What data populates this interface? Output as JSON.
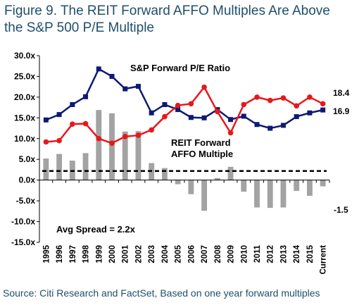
{
  "title": "Figure 9. The REIT Forward AFFO Multiples Are Above the S&P 500 P/E Multiple",
  "source": "Source: Citi Research and FactSet, Based on one year forward multiples",
  "chart_data": {
    "type": "bar+line",
    "categories": [
      "1995",
      "1996",
      "1997",
      "1998",
      "1999",
      "2000",
      "2001",
      "2002",
      "2003",
      "2004",
      "2005",
      "2006",
      "2007",
      "2008",
      "2009",
      "2010",
      "2011",
      "2012",
      "2013",
      "2014",
      "2015",
      "Current"
    ],
    "ylim": [
      -15,
      30
    ],
    "yticks": [
      "30.0x",
      "25.0x",
      "20.0x",
      "15.0x",
      "10.0x",
      "5.0x",
      "0.0x",
      "-5.0x",
      "-10.0x",
      "-15.0x"
    ],
    "ytick_values": [
      30,
      25,
      20,
      15,
      10,
      5,
      0,
      -5,
      -10,
      -15
    ],
    "grid": false,
    "series": [
      {
        "name": "S&P Forward P/E Ratio",
        "type": "line",
        "color": "#0d1a72",
        "values": [
          14.5,
          15.8,
          18.2,
          20.1,
          26.8,
          25.0,
          22.0,
          22.6,
          16.2,
          18.2,
          17.0,
          15.1,
          15.0,
          17.0,
          14.6,
          15.4,
          13.4,
          12.5,
          13.2,
          15.3,
          16.2,
          16.9
        ]
      },
      {
        "name": "REIT Forward AFFO Multiple",
        "type": "line",
        "color": "#e8171d",
        "values": [
          9.2,
          9.5,
          13.5,
          13.6,
          10.0,
          8.9,
          10.5,
          10.8,
          12.1,
          15.3,
          18.0,
          18.4,
          22.4,
          16.5,
          11.4,
          18.2,
          20.0,
          19.2,
          19.8,
          17.9,
          20.0,
          18.4
        ]
      },
      {
        "name": "Spread",
        "type": "bar",
        "color": "#a3a3a3",
        "values": [
          5.2,
          6.3,
          4.7,
          6.5,
          16.9,
          16.1,
          11.7,
          11.8,
          4.1,
          2.9,
          -1.0,
          -3.4,
          -7.4,
          0.5,
          3.2,
          -2.8,
          -6.6,
          -6.7,
          -6.6,
          -2.6,
          -3.8,
          -1.5
        ]
      }
    ],
    "avg_spread": {
      "label": "Avg Spread = 2.2x",
      "value": 2.2
    },
    "annotations": {
      "sp_label": "S&P Forward P/E Ratio",
      "reit_label_line1": "REIT Forward",
      "reit_label_line2": "AFFO Multiple",
      "end_reit": "18.4",
      "end_sp": "16.9",
      "end_spread": "-1.5"
    }
  }
}
